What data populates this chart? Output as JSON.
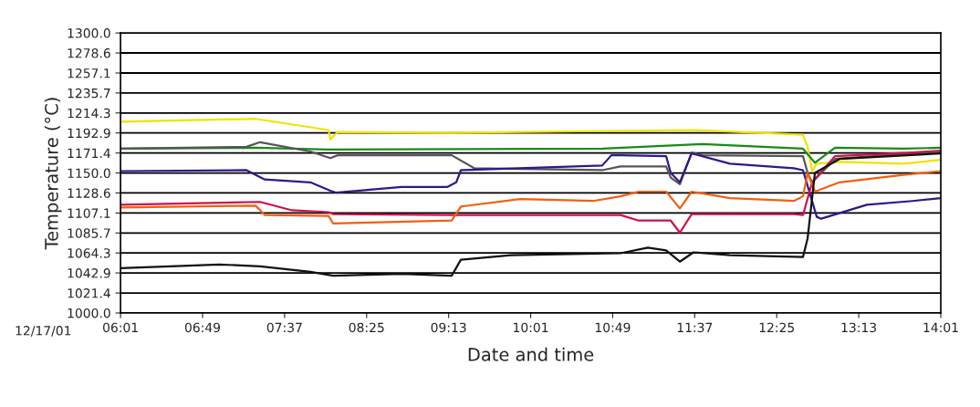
{
  "chart_data": {
    "type": "line",
    "xlabel": "Date and time",
    "ylabel": "Temperature (°C)",
    "annotations": [
      "12/17/01"
    ],
    "xlim": [
      6.0167,
      14.017
    ],
    "xticks": [
      {
        "value": 6.0167,
        "label": "06:01"
      },
      {
        "value": 6.8167,
        "label": "06:49"
      },
      {
        "value": 7.6167,
        "label": "07:37"
      },
      {
        "value": 8.4167,
        "label": "08:25"
      },
      {
        "value": 9.2167,
        "label": "09:13"
      },
      {
        "value": 10.0167,
        "label": "10:01"
      },
      {
        "value": 10.8167,
        "label": "10:49"
      },
      {
        "value": 11.6167,
        "label": "11:37"
      },
      {
        "value": 12.4167,
        "label": "12:25"
      },
      {
        "value": 13.2167,
        "label": "13:13"
      },
      {
        "value": 14.0167,
        "label": "14:01"
      }
    ],
    "ylim": [
      1000,
      1300
    ],
    "yticks": [
      {
        "value": 1000,
        "label": "1000.0"
      },
      1021.4,
      1042.9,
      1064.3,
      1085.7,
      1107.1,
      1128.6,
      {
        "value": 1150,
        "label": "1150.0"
      },
      1171.4,
      1192.9,
      1214.3,
      1235.7,
      1257.1,
      1278.6,
      {
        "value": 1300,
        "label": "1300.0"
      }
    ],
    "grid": "y",
    "line_style": "solid",
    "marker": "none",
    "series": [
      {
        "color": "#f2e200",
        "x": [
          6.017,
          7.334,
          8.046,
          8.063,
          8.135,
          9.247,
          11.587,
          12.673,
          12.718,
          12.762,
          12.807,
          13.029,
          13.652,
          14.017
        ],
        "values": [
          1205,
          1208,
          1196,
          1186,
          1194,
          1193,
          1196,
          1191,
          1178,
          1152,
          1160,
          1162,
          1160,
          1164
        ]
      },
      {
        "color": "#1a8a1a",
        "x": [
          6.017,
          7.334,
          8.046,
          10.715,
          11.694,
          12.673,
          12.718,
          12.789,
          12.985,
          13.652,
          14.017
        ],
        "values": [
          1176,
          1177,
          1175,
          1176,
          1181,
          1176,
          1170,
          1161,
          1177,
          1176,
          1177
        ]
      },
      {
        "color": "#555555",
        "x": [
          6.017,
          7.245,
          7.378,
          7.868,
          8.063,
          8.135,
          9.247,
          9.469,
          10.715,
          10.893,
          11.338,
          11.383,
          11.472,
          11.587,
          11.694,
          12.673,
          12.718,
          12.762,
          12.985,
          13.741,
          14.017
        ],
        "values": [
          1176,
          1178,
          1183,
          1173,
          1166,
          1169,
          1169,
          1155,
          1153,
          1157,
          1157,
          1145,
          1138,
          1172,
          1169,
          1168,
          1150,
          1140,
          1165,
          1171,
          1172
        ]
      },
      {
        "color": "#2b1a8c",
        "x": [
          6.017,
          7.245,
          7.423,
          7.868,
          8.063,
          8.117,
          8.757,
          9.202,
          9.291,
          9.336,
          10.715,
          10.804,
          10.893,
          11.338,
          11.383,
          11.472,
          11.587,
          11.961,
          12.584,
          12.673,
          12.807,
          12.851,
          13.296,
          13.741,
          14.017
        ],
        "values": [
          1152,
          1153,
          1143,
          1140,
          1131,
          1129,
          1135,
          1135,
          1140,
          1153,
          1158,
          1169,
          1169,
          1168,
          1150,
          1140,
          1171,
          1160,
          1155,
          1153,
          1103,
          1101,
          1116,
          1120,
          1123
        ]
      },
      {
        "color": "#d0104a",
        "x": [
          6.017,
          7.378,
          7.69,
          8.046,
          8.09,
          9.247,
          10.893,
          11.071,
          11.383,
          11.472,
          11.587,
          12.584,
          12.673,
          12.762,
          12.985,
          13.741,
          14.017
        ],
        "values": [
          1116,
          1119,
          1110,
          1108,
          1106,
          1105,
          1105,
          1099,
          1099,
          1086,
          1106,
          1106,
          1105,
          1140,
          1168,
          1172,
          1174
        ]
      },
      {
        "color": "#f06010",
        "x": [
          6.017,
          7.334,
          7.423,
          8.046,
          8.09,
          9.247,
          9.336,
          9.914,
          10.626,
          10.893,
          11.071,
          11.338,
          11.472,
          11.587,
          11.961,
          12.584,
          12.673,
          12.718,
          12.789,
          13.029,
          13.652,
          14.017
        ],
        "values": [
          1113,
          1115,
          1105,
          1104,
          1096,
          1099,
          1114,
          1122,
          1120,
          1125,
          1130,
          1130,
          1112,
          1130,
          1123,
          1120,
          1125,
          1150,
          1130,
          1140,
          1148,
          1152
        ]
      },
      {
        "color": "#111111",
        "x": [
          6.017,
          6.98,
          7.378,
          7.868,
          8.09,
          8.757,
          9.247,
          9.336,
          9.825,
          10.893,
          11.16,
          11.338,
          11.472,
          11.605,
          11.961,
          12.673,
          12.718,
          12.789,
          13.029,
          14.017
        ],
        "values": [
          1048,
          1052,
          1050,
          1044,
          1040,
          1042,
          1040,
          1057,
          1062,
          1064,
          1070,
          1067,
          1055,
          1065,
          1062,
          1060,
          1080,
          1150,
          1165,
          1171
        ]
      }
    ]
  }
}
